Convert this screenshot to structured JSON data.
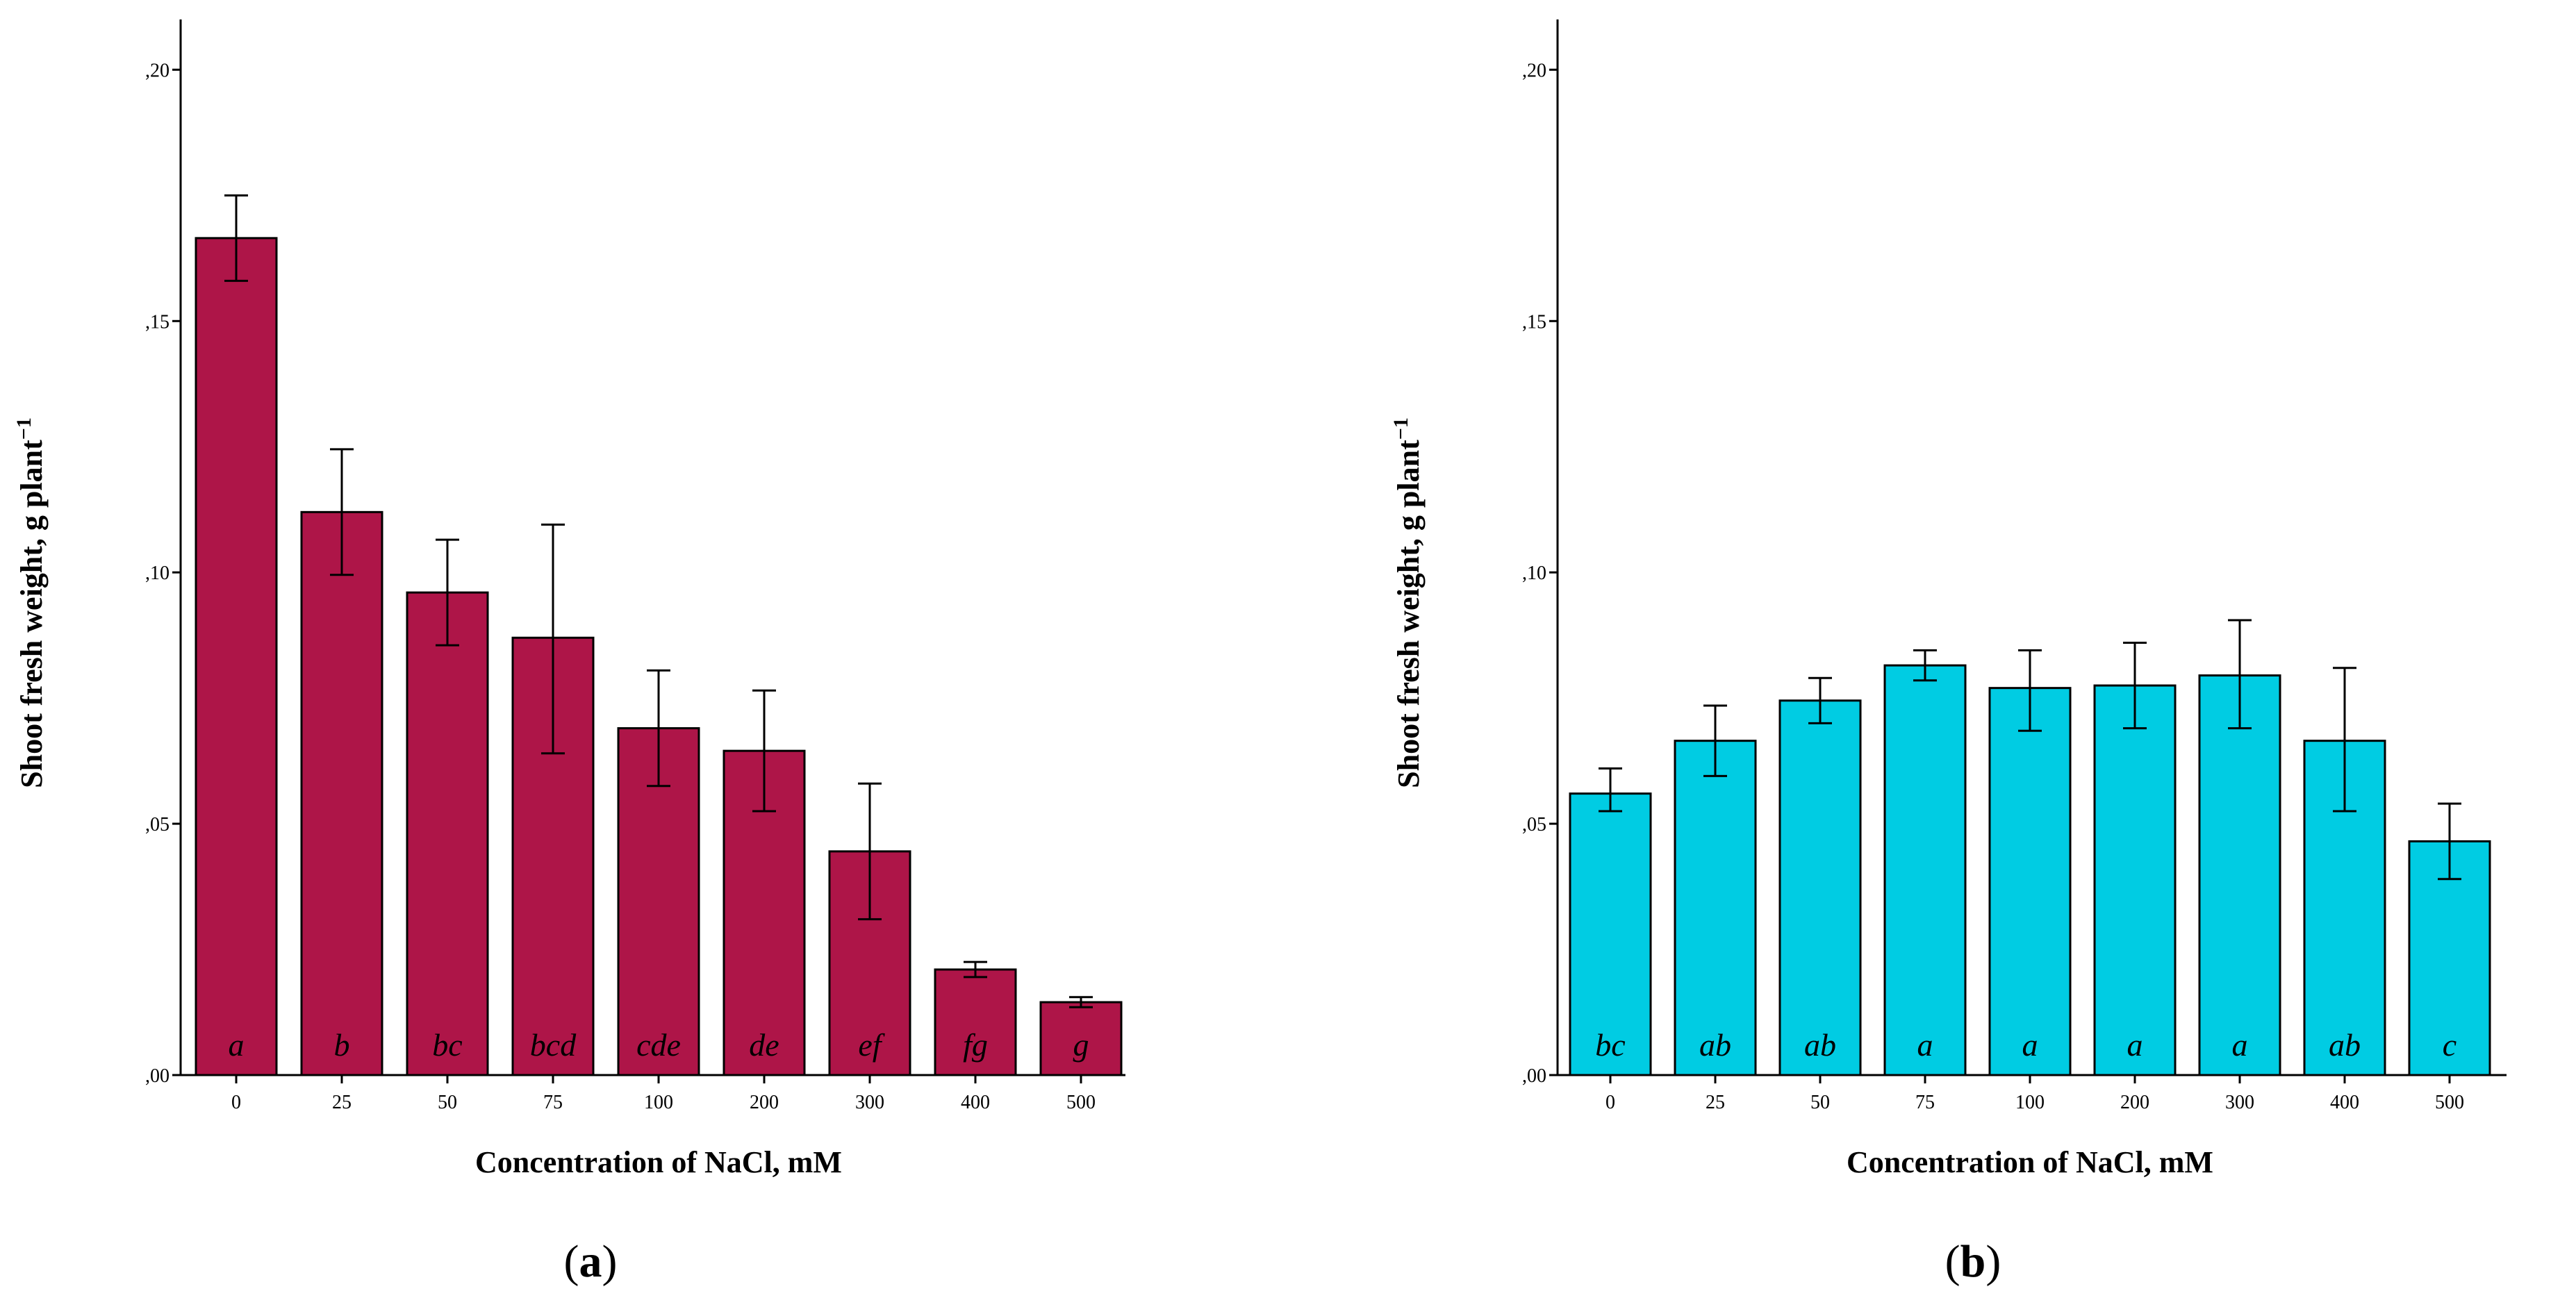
{
  "figure": {
    "panels": [
      {
        "label_open": "(",
        "label_letter": "a",
        "label_close": ")"
      },
      {
        "label_open": "(",
        "label_letter": "b",
        "label_close": ")"
      }
    ]
  },
  "chart_data": [
    {
      "type": "bar",
      "title": "",
      "xlabel": "Concentration of NaCl, mM",
      "ylabel_main": "Shoot fresh weight, g plant",
      "ylabel_sup": "−1",
      "categories": [
        "0",
        "25",
        "50",
        "75",
        "100",
        "200",
        "300",
        "400",
        "500"
      ],
      "values": [
        0.1665,
        0.112,
        0.096,
        0.087,
        0.069,
        0.0645,
        0.0445,
        0.021,
        0.0145
      ],
      "error_upper": [
        0.175,
        0.1245,
        0.1065,
        0.1095,
        0.0805,
        0.0765,
        0.058,
        0.0225,
        0.0155
      ],
      "error_lower": [
        0.158,
        0.0995,
        0.0855,
        0.064,
        0.0575,
        0.0525,
        0.031,
        0.0195,
        0.0135
      ],
      "significance": [
        "a",
        "b",
        "bc",
        "bcd",
        "cde",
        "de",
        "ef",
        "fg",
        "g"
      ],
      "ylim": [
        0,
        0.21
      ],
      "yticks": [
        0,
        0.05,
        0.1,
        0.15,
        0.2
      ],
      "ytick_labels": [
        ",00",
        ",05",
        ",10",
        ",15",
        ",20"
      ],
      "bar_color": "#AE1548"
    },
    {
      "type": "bar",
      "title": "",
      "xlabel": "Concentration of NaCl, mM",
      "ylabel_main": "Shoot fresh weight, g plant",
      "ylabel_sup": "−1",
      "categories": [
        "0",
        "25",
        "50",
        "75",
        "100",
        "200",
        "300",
        "400",
        "500"
      ],
      "values": [
        0.056,
        0.0665,
        0.0745,
        0.0815,
        0.077,
        0.0775,
        0.0795,
        0.0665,
        0.0465
      ],
      "error_upper": [
        0.061,
        0.0735,
        0.079,
        0.0845,
        0.0845,
        0.086,
        0.0905,
        0.081,
        0.054
      ],
      "error_lower": [
        0.0525,
        0.0595,
        0.07,
        0.0785,
        0.0685,
        0.069,
        0.069,
        0.0525,
        0.039
      ],
      "significance": [
        "bc",
        "ab",
        "ab",
        "a",
        "a",
        "a",
        "a",
        "ab",
        "c"
      ],
      "ylim": [
        0,
        0.21
      ],
      "yticks": [
        0,
        0.05,
        0.1,
        0.15,
        0.2
      ],
      "ytick_labels": [
        ",00",
        ",05",
        ",10",
        ",15",
        ",20"
      ],
      "bar_color": "#00CCE3"
    }
  ]
}
